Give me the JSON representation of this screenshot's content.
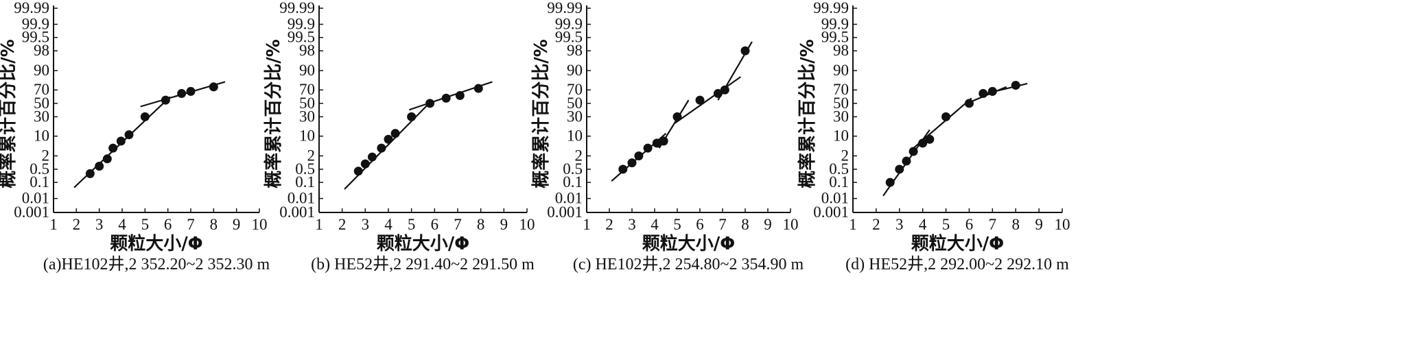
{
  "figure": {
    "type": "probability-cumulative-grain-size",
    "panels": 4
  },
  "chart_data": [
    {
      "type": "scatter",
      "caption": "(a)HE102井,2 352.20~2 352.30  m",
      "xlabel": "颗粒大小/Φ",
      "ylabel": "概率累计百分比/%",
      "xticks": [
        1,
        2,
        3,
        4,
        5,
        6,
        7,
        8,
        9,
        10
      ],
      "yticks": [
        "0.001",
        "0.01",
        "0.1",
        "0.5",
        "2",
        "10",
        "30",
        "50",
        "70",
        "90",
        "98",
        "99.5",
        "99.9",
        "99.99"
      ],
      "points": [
        [
          2.6,
          0.3
        ],
        [
          3.0,
          0.7
        ],
        [
          3.35,
          1.5
        ],
        [
          3.6,
          4
        ],
        [
          3.95,
          7
        ],
        [
          4.3,
          11
        ],
        [
          5.0,
          30
        ],
        [
          5.9,
          55
        ],
        [
          6.6,
          65
        ],
        [
          7.0,
          68
        ],
        [
          8.0,
          74
        ]
      ],
      "segments": [
        [
          [
            1.9,
            0.05
          ],
          [
            6.1,
            60
          ]
        ],
        [
          [
            4.8,
            45
          ],
          [
            8.5,
            80
          ]
        ]
      ]
    },
    {
      "type": "scatter",
      "caption": "(b) HE52井,2 291.40~2 291.50 m",
      "xlabel": "颗粒大小/Φ",
      "ylabel": "概率累计百分比/%",
      "xticks": [
        1,
        2,
        3,
        4,
        5,
        6,
        7,
        8,
        9,
        10
      ],
      "yticks": [
        "0.001",
        "0.01",
        "0.1",
        "0.5",
        "2",
        "10",
        "30",
        "50",
        "70",
        "90",
        "98",
        "99.5",
        "99.9",
        "99.99"
      ],
      "points": [
        [
          2.7,
          0.4
        ],
        [
          3.0,
          0.9
        ],
        [
          3.3,
          1.8
        ],
        [
          3.7,
          4
        ],
        [
          4.0,
          8
        ],
        [
          4.3,
          12
        ],
        [
          5.0,
          30
        ],
        [
          5.8,
          50
        ],
        [
          6.5,
          58
        ],
        [
          7.1,
          62
        ],
        [
          7.9,
          72
        ]
      ],
      "segments": [
        [
          [
            2.1,
            0.04
          ],
          [
            5.9,
            55
          ]
        ],
        [
          [
            4.9,
            40
          ],
          [
            8.5,
            80
          ]
        ]
      ]
    },
    {
      "type": "scatter",
      "caption": "(c) HE102井,2 254.80~2 354.90 m",
      "xlabel": "颗粒大小/Φ",
      "ylabel": "概率累计百分比/%",
      "xticks": [
        1,
        2,
        3,
        4,
        5,
        6,
        7,
        8,
        9,
        10
      ],
      "yticks": [
        "0.001",
        "0.01",
        "0.1",
        "0.5",
        "2",
        "10",
        "30",
        "50",
        "70",
        "90",
        "98",
        "99.5",
        "99.9",
        "99.99"
      ],
      "points": [
        [
          2.6,
          0.5
        ],
        [
          3.0,
          1.0
        ],
        [
          3.3,
          2.0
        ],
        [
          3.7,
          4
        ],
        [
          4.1,
          6
        ],
        [
          4.4,
          7
        ],
        [
          5.0,
          30
        ],
        [
          6.0,
          55
        ],
        [
          6.8,
          65
        ],
        [
          7.1,
          70
        ],
        [
          8.0,
          98
        ]
      ],
      "segments": [
        [
          [
            2.1,
            0.12
          ],
          [
            4.5,
            12
          ]
        ],
        [
          [
            4.2,
            4
          ],
          [
            5.5,
            55
          ]
        ],
        [
          [
            4.9,
            22
          ],
          [
            7.8,
            85
          ]
        ],
        [
          [
            6.8,
            55
          ],
          [
            8.3,
            99.2
          ]
        ]
      ]
    },
    {
      "type": "scatter",
      "caption": "(d) HE52井,2 292.00~2 292.10 m",
      "xlabel": "颗粒大小/Φ",
      "ylabel": "概率累计百分比/%",
      "xticks": [
        1,
        2,
        3,
        4,
        5,
        6,
        7,
        8,
        9,
        10
      ],
      "yticks": [
        "0.001",
        "0.01",
        "0.1",
        "0.5",
        "2",
        "10",
        "30",
        "50",
        "70",
        "90",
        "98",
        "99.5",
        "99.9",
        "99.99"
      ],
      "points": [
        [
          2.6,
          0.1
        ],
        [
          3.0,
          0.5
        ],
        [
          3.3,
          1.2
        ],
        [
          3.6,
          3
        ],
        [
          4.0,
          6
        ],
        [
          4.3,
          8
        ],
        [
          5.0,
          30
        ],
        [
          6.0,
          50
        ],
        [
          6.6,
          65
        ],
        [
          7.0,
          68
        ],
        [
          8.0,
          76
        ]
      ],
      "segments": [
        [
          [
            2.3,
            0.015
          ],
          [
            4.3,
            15
          ]
        ],
        [
          [
            3.6,
            4
          ],
          [
            6.1,
            58
          ]
        ],
        [
          [
            5.9,
            50
          ],
          [
            7.6,
            74
          ]
        ],
        [
          [
            6.6,
            64
          ],
          [
            8.5,
            78
          ]
        ]
      ]
    }
  ]
}
